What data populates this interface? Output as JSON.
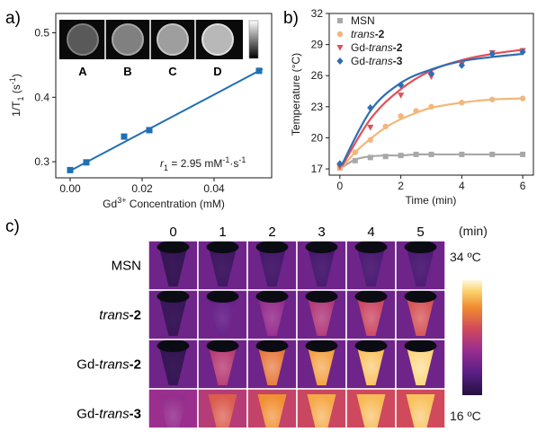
{
  "panels": {
    "a": "a)",
    "b": "b)",
    "c": "c)"
  },
  "chart_data": [
    {
      "type": "scatter",
      "panel": "a",
      "xlabel_parts": [
        "Gd",
        "3+",
        " Concentration (mM)"
      ],
      "ylabel_parts": [
        "1/T",
        "1",
        " (s",
        "-1",
        ")"
      ],
      "xlim": [
        -0.004,
        0.056
      ],
      "ylim": [
        0.275,
        0.53
      ],
      "xticks": [
        0.0,
        0.02,
        0.04
      ],
      "xtick_labels": [
        "0.00",
        "0.02",
        "0.04"
      ],
      "yticks": [
        0.3,
        0.4,
        0.5
      ],
      "ytick_labels": [
        "0.3",
        "0.4",
        "0.5"
      ],
      "series": [
        {
          "x": [
            0.0,
            0.0045,
            0.015,
            0.022,
            0.0525
          ],
          "y": [
            0.287,
            0.299,
            0.339,
            0.349,
            0.441
          ]
        }
      ],
      "fit_line": {
        "x": [
          0.0,
          0.0535
        ],
        "y": [
          0.286,
          0.444
        ]
      },
      "annotation_parts": [
        "r",
        "1",
        " = 2.95 mM",
        "-1",
        "·s",
        "-1"
      ],
      "color": "#1f6fb2",
      "inset": {
        "labels": [
          "A",
          "B",
          "C",
          "D"
        ],
        "brightness": [
          0.35,
          0.5,
          0.62,
          0.72
        ]
      }
    },
    {
      "type": "line",
      "panel": "b",
      "xlabel": "Time (min)",
      "ylabel": "Temperature (°C)",
      "xlim": [
        -0.35,
        6.35
      ],
      "ylim": [
        16.4,
        32
      ],
      "xticks": [
        0,
        2,
        4,
        6
      ],
      "yticks": [
        17,
        20,
        23,
        26,
        29,
        32
      ],
      "series": [
        {
          "legend_parts": [
            "MSN"
          ],
          "marker": "square",
          "color": "#a8a8a8",
          "x": [
            0,
            0.5,
            1,
            1.5,
            2,
            2.5,
            3,
            4,
            5,
            6
          ],
          "y": [
            17.1,
            17.8,
            18.1,
            18.2,
            18.3,
            18.4,
            18.4,
            18.4,
            18.4,
            18.4
          ],
          "fit_y": [
            17.0,
            17.9,
            18.2,
            18.3,
            18.3,
            18.4,
            18.4,
            18.4,
            18.4,
            18.4
          ]
        },
        {
          "legend_parts": [
            "trans",
            "-2"
          ],
          "marker": "circle",
          "color": "#f2b77c",
          "x": [
            0,
            0.5,
            1,
            1.5,
            2,
            2.5,
            3,
            4,
            5,
            6
          ],
          "y": [
            17.1,
            18.6,
            19.8,
            21.1,
            22.1,
            22.6,
            23.0,
            23.4,
            23.7,
            23.8
          ],
          "fit_y": [
            16.9,
            18.6,
            19.9,
            21.0,
            21.8,
            22.4,
            22.9,
            23.4,
            23.7,
            23.8
          ]
        },
        {
          "legend_parts": [
            "Gd-",
            "trans",
            "-2"
          ],
          "marker": "triangle-down",
          "color": "#e05159",
          "x": [
            0,
            1,
            2,
            3,
            4,
            5,
            6
          ],
          "y": [
            17.2,
            21.0,
            24.1,
            25.9,
            27.1,
            28.2,
            28.4
          ],
          "fit_y": [
            16.9,
            21.8,
            24.7,
            26.5,
            27.5,
            28.1,
            28.5
          ]
        },
        {
          "legend_parts": [
            "Gd-",
            "trans",
            "-3"
          ],
          "marker": "diamond",
          "color": "#2f6eb2",
          "x": [
            0,
            1,
            2,
            3,
            4,
            5,
            6
          ],
          "y": [
            17.5,
            22.9,
            25.1,
            26.2,
            27.0,
            28.1,
            28.3
          ],
          "fit_y": [
            17.0,
            22.6,
            25.3,
            26.6,
            27.4,
            27.8,
            28.1
          ]
        }
      ]
    }
  ],
  "thermal": {
    "time_labels": [
      "0",
      "1",
      "2",
      "3",
      "4",
      "5"
    ],
    "time_unit": "(min)",
    "row_labels": [
      [
        "MSN"
      ],
      [
        "trans",
        "-2"
      ],
      [
        "Gd-",
        "trans",
        "-2"
      ],
      [
        "Gd-",
        "trans",
        "-3"
      ]
    ],
    "intensity": [
      [
        0.05,
        0.08,
        0.1,
        0.11,
        0.12,
        0.12
      ],
      [
        0.06,
        0.2,
        0.32,
        0.4,
        0.48,
        0.52
      ],
      [
        0.05,
        0.42,
        0.62,
        0.72,
        0.8,
        0.86
      ],
      [
        0.32,
        0.55,
        0.68,
        0.74,
        0.78,
        0.8
      ]
    ],
    "scale_max": "34 ºC",
    "scale_min": "16 ºC",
    "colormap": [
      "#24113d",
      "#5b1f88",
      "#9b2f8e",
      "#d14a5c",
      "#f08a2e",
      "#fbd06a",
      "#fff6dc"
    ]
  }
}
